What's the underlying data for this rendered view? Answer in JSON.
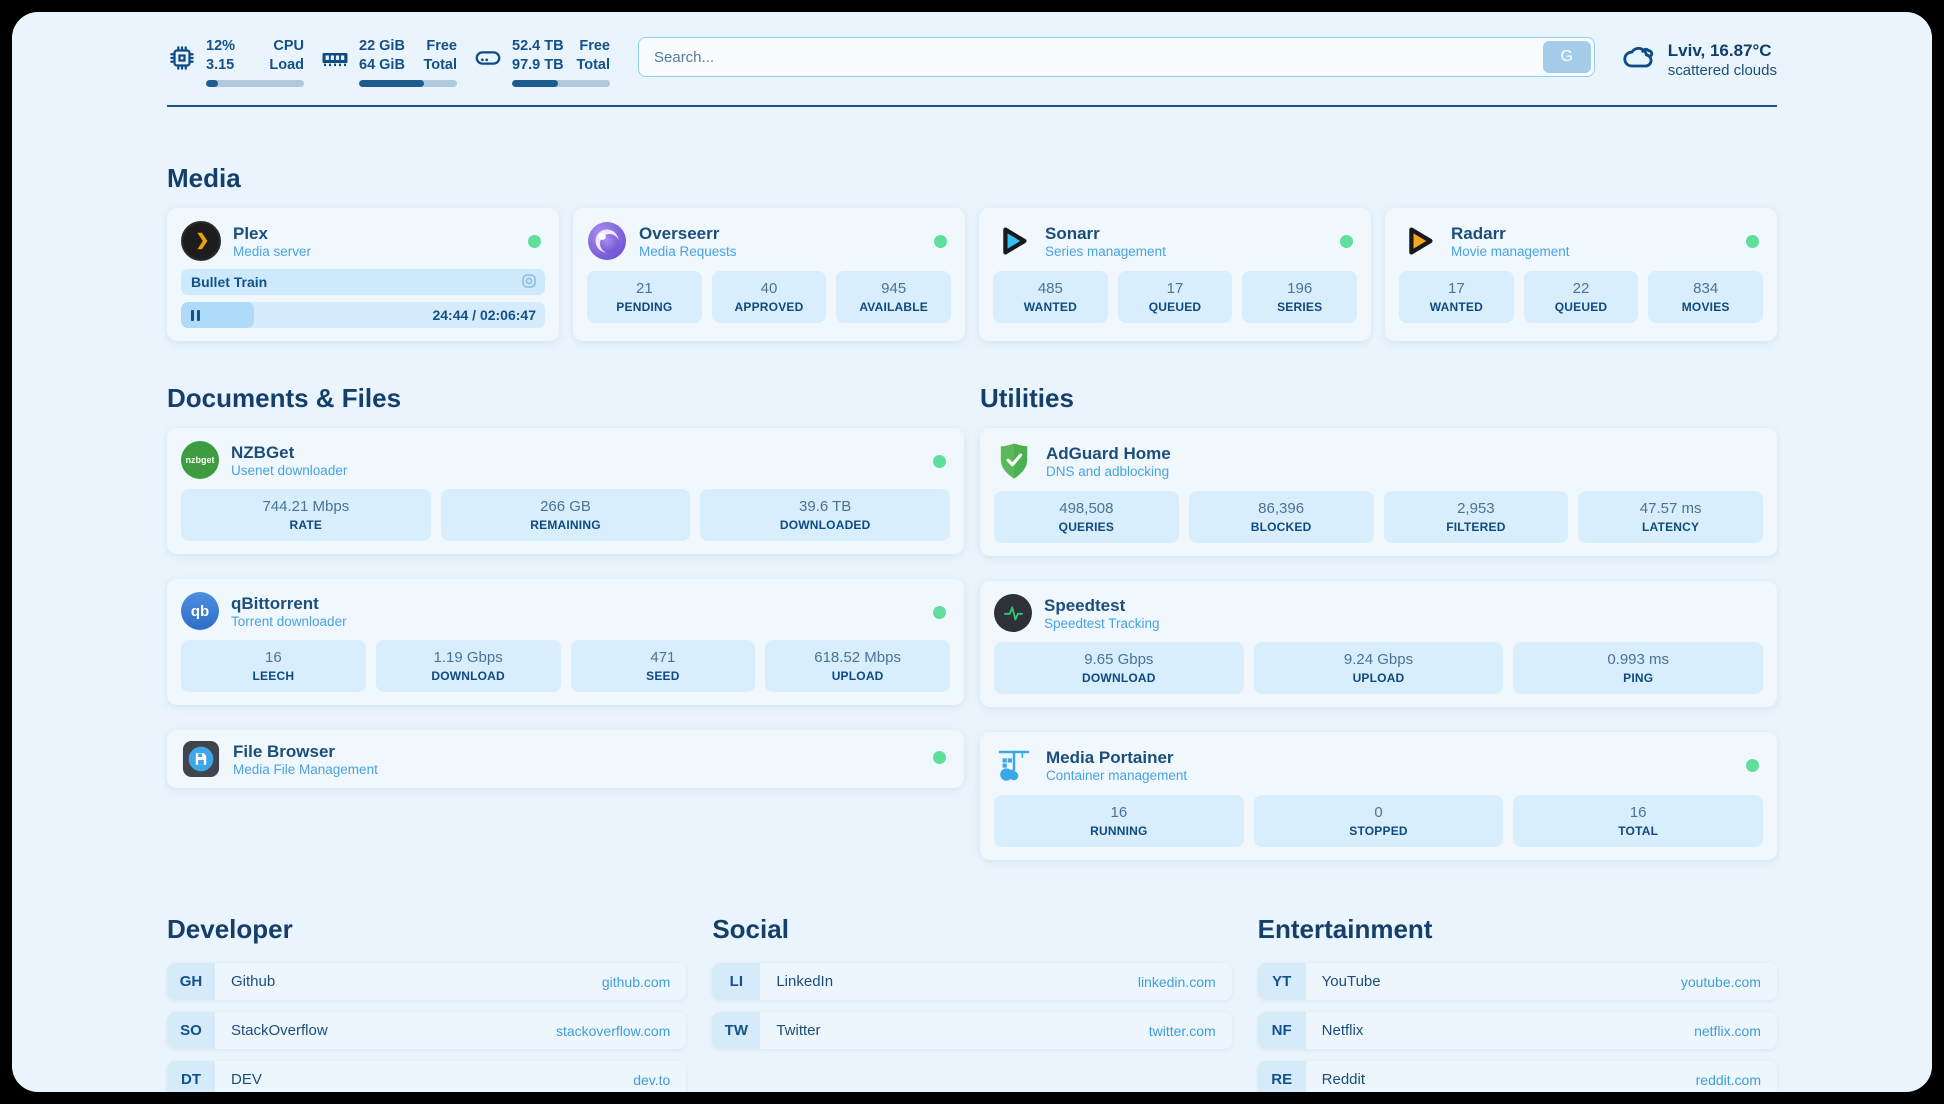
{
  "colors": {
    "background": "#eaf4fc",
    "card": "#f0f8fe",
    "stat_box": "#d8eefc",
    "navy_text": "#14518a",
    "subtitle_blue": "#49a2e2",
    "link_blue": "#3f9eda",
    "status_online_green": "#5fdf9b",
    "progress_fill": "#1e5c90"
  },
  "topbar": {
    "cpu": {
      "icon": "cpu-chip-icon",
      "primary": "12%",
      "secondary": "3.15",
      "label_primary": "CPU",
      "label_secondary": "Load",
      "progress_pct": 12
    },
    "memory": {
      "icon": "ram-icon",
      "primary": "22 GiB",
      "secondary": "64 GiB",
      "label_primary": "Free",
      "label_secondary": "Total",
      "progress_pct": 66
    },
    "disk": {
      "icon": "hard-drive-icon",
      "primary": "52.4 TB",
      "secondary": "97.9 TB",
      "label_primary": "Free",
      "label_secondary": "Total",
      "progress_pct": 47
    },
    "search": {
      "placeholder": "Search...",
      "button_label": "G"
    },
    "weather": {
      "icon": "cloud-icon",
      "location_temp": "Lviv, 16.87°C",
      "condition": "scattered clouds"
    }
  },
  "sections": {
    "media": {
      "title": "Media",
      "plex": {
        "icon": "plex-icon",
        "name": "Plex",
        "subtitle": "Media server",
        "status": "online",
        "now_playing": "Bullet Train",
        "time": "24:44 / 02:06:47",
        "progress_pct": 20
      },
      "overseerr": {
        "icon": "overseerr-icon",
        "name": "Overseerr",
        "subtitle": "Media Requests",
        "status": "online",
        "stats": [
          {
            "value": "21",
            "label": "PENDING"
          },
          {
            "value": "40",
            "label": "APPROVED"
          },
          {
            "value": "945",
            "label": "AVAILABLE"
          }
        ]
      },
      "sonarr": {
        "icon": "sonarr-icon",
        "name": "Sonarr",
        "subtitle": "Series management",
        "status": "online",
        "stats": [
          {
            "value": "485",
            "label": "WANTED"
          },
          {
            "value": "17",
            "label": "QUEUED"
          },
          {
            "value": "196",
            "label": "SERIES"
          }
        ]
      },
      "radarr": {
        "icon": "radarr-icon",
        "name": "Radarr",
        "subtitle": "Movie management",
        "status": "online",
        "stats": [
          {
            "value": "17",
            "label": "WANTED"
          },
          {
            "value": "22",
            "label": "QUEUED"
          },
          {
            "value": "834",
            "label": "MOVIES"
          }
        ]
      }
    },
    "documents": {
      "title": "Documents & Files",
      "nzbget": {
        "icon": "nzbget-icon",
        "name": "NZBGet",
        "subtitle": "Usenet downloader",
        "status": "online",
        "stats": [
          {
            "value": "744.21 Mbps",
            "label": "RATE"
          },
          {
            "value": "266 GB",
            "label": "REMAINING"
          },
          {
            "value": "39.6 TB",
            "label": "DOWNLOADED"
          }
        ]
      },
      "qbittorrent": {
        "icon": "qbittorrent-icon",
        "name": "qBittorrent",
        "subtitle": "Torrent downloader",
        "status": "online",
        "stats": [
          {
            "value": "16",
            "label": "LEECH"
          },
          {
            "value": "1.19 Gbps",
            "label": "DOWNLOAD"
          },
          {
            "value": "471",
            "label": "SEED"
          },
          {
            "value": "618.52 Mbps",
            "label": "UPLOAD"
          }
        ]
      },
      "filebrowser": {
        "icon": "filebrowser-icon",
        "name": "File Browser",
        "subtitle": "Media File Management",
        "status": "online"
      }
    },
    "utilities": {
      "title": "Utilities",
      "adguard": {
        "icon": "adguard-shield-icon",
        "name": "AdGuard Home",
        "subtitle": "DNS and adblocking",
        "stats": [
          {
            "value": "498,508",
            "label": "QUERIES"
          },
          {
            "value": "86,396",
            "label": "BLOCKED"
          },
          {
            "value": "2,953",
            "label": "FILTERED"
          },
          {
            "value": "47.57 ms",
            "label": "LATENCY"
          }
        ]
      },
      "speedtest": {
        "icon": "speedtest-pulse-icon",
        "name": "Speedtest",
        "subtitle": "Speedtest Tracking",
        "stats": [
          {
            "value": "9.65 Gbps",
            "label": "DOWNLOAD"
          },
          {
            "value": "9.24 Gbps",
            "label": "UPLOAD"
          },
          {
            "value": "0.993 ms",
            "label": "PING"
          }
        ]
      },
      "portainer": {
        "icon": "portainer-crane-icon",
        "name": "Media Portainer",
        "subtitle": "Container management",
        "status": "online",
        "stats": [
          {
            "value": "16",
            "label": "RUNNING"
          },
          {
            "value": "0",
            "label": "STOPPED"
          },
          {
            "value": "16",
            "label": "TOTAL"
          }
        ]
      }
    },
    "developer": {
      "title": "Developer",
      "links": [
        {
          "abbr": "GH",
          "name": "Github",
          "url": "github.com"
        },
        {
          "abbr": "SO",
          "name": "StackOverflow",
          "url": "stackoverflow.com"
        },
        {
          "abbr": "DT",
          "name": "DEV",
          "url": "dev.to"
        }
      ]
    },
    "social": {
      "title": "Social",
      "links": [
        {
          "abbr": "LI",
          "name": "LinkedIn",
          "url": "linkedin.com"
        },
        {
          "abbr": "TW",
          "name": "Twitter",
          "url": "twitter.com"
        }
      ]
    },
    "entertainment": {
      "title": "Entertainment",
      "links": [
        {
          "abbr": "YT",
          "name": "YouTube",
          "url": "youtube.com"
        },
        {
          "abbr": "NF",
          "name": "Netflix",
          "url": "netflix.com"
        },
        {
          "abbr": "RE",
          "name": "Reddit",
          "url": "reddit.com"
        }
      ]
    }
  }
}
